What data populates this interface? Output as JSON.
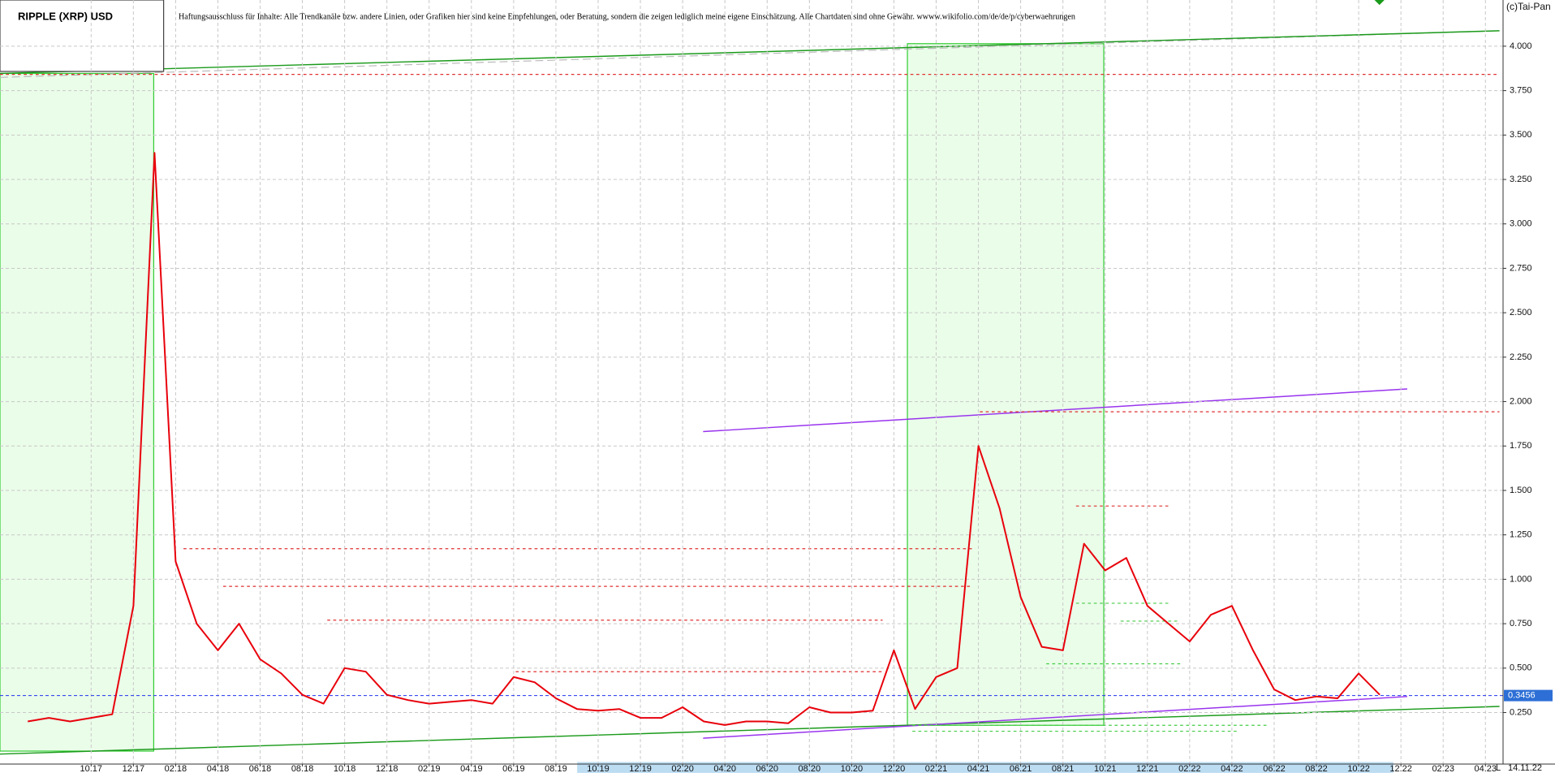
{
  "chart_data": {
    "type": "line",
    "title": "RIPPLE (XRP) USD",
    "disclaimer": "Haftungsausschluss für Inhalte: Alle Trendkanäle bzw. andere Linien, oder Grafiken hier sind keine Empfehlungen, oder Beratung, sondern die zeigen lediglich meine eigene Einschätzung. Alle Chartdaten sind ohne Gewähr.  wwww.wikifolio.com/de/de/p/cyberwaehrungen",
    "source": "(c)Tai-Pan",
    "date": "14.11.22",
    "axis_mode": "L",
    "last_price": 0.3456,
    "categories": [
      null,
      null,
      null,
      "10.17",
      null,
      "12.17",
      null,
      "02.18",
      null,
      "04.18",
      null,
      "06.18",
      null,
      "08.18",
      null,
      "10.18",
      null,
      "12.18",
      null,
      "02.19",
      null,
      "04.19",
      null,
      "06.19",
      null,
      "08.19",
      null,
      "10.19",
      null,
      "12.19",
      null,
      "02.20",
      null,
      "04.20",
      null,
      "06.20",
      null,
      "08.20",
      null,
      "10.20",
      null,
      "12.20",
      null,
      "02.21",
      null,
      "04.21",
      null,
      "06.21",
      null,
      "08.21",
      null,
      "10.21",
      null,
      "12.21",
      null,
      "02.22",
      null,
      "04.22",
      null,
      "06.22",
      null,
      "08.22",
      null,
      "10.22",
      null,
      "12.22",
      null,
      "02.23",
      null,
      "04.23"
    ],
    "series": [
      {
        "name": "XRP",
        "color": "#e8000b",
        "values": [
          0.2,
          0.22,
          0.2,
          0.22,
          0.24,
          0.85,
          3.4,
          1.1,
          0.75,
          0.6,
          0.75,
          0.55,
          0.47,
          0.35,
          0.3,
          0.5,
          0.48,
          0.35,
          0.32,
          0.3,
          0.31,
          0.32,
          0.3,
          0.45,
          0.42,
          0.33,
          0.27,
          0.26,
          0.27,
          0.22,
          0.22,
          0.28,
          0.2,
          0.18,
          0.2,
          0.2,
          0.19,
          0.28,
          0.25,
          0.25,
          0.26,
          0.6,
          0.27,
          0.45,
          0.5,
          1.75,
          1.4,
          0.9,
          0.62,
          0.6,
          1.2,
          1.05,
          1.12,
          0.85,
          0.75,
          0.65,
          0.8,
          0.85,
          0.6,
          0.38,
          0.32,
          0.34,
          0.33,
          0.47,
          0.35,
          null,
          null,
          null,
          null,
          null
        ]
      }
    ],
    "ylim": [
      -0.04,
      4.26
    ],
    "yticks": [
      {
        "value": 0.25,
        "label": "0.250"
      },
      {
        "value": 0.5,
        "label": "0.500"
      },
      {
        "value": 0.75,
        "label": "0.750"
      },
      {
        "value": 1.0,
        "label": "1.000"
      },
      {
        "value": 1.25,
        "label": "1.250"
      },
      {
        "value": 1.5,
        "label": "1.500"
      },
      {
        "value": 1.75,
        "label": "1.750"
      },
      {
        "value": 2.0,
        "label": "2.000"
      },
      {
        "value": 2.25,
        "label": "2.250"
      },
      {
        "value": 2.5,
        "label": "2.500"
      },
      {
        "value": 2.75,
        "label": "2.750"
      },
      {
        "value": 3.0,
        "label": "3.000"
      },
      {
        "value": 3.25,
        "label": "3.250"
      },
      {
        "value": 3.5,
        "label": "3.500"
      },
      {
        "value": 3.75,
        "label": "3.750"
      },
      {
        "value": 4.0,
        "label": "4.000"
      }
    ],
    "grid": true
  }
}
